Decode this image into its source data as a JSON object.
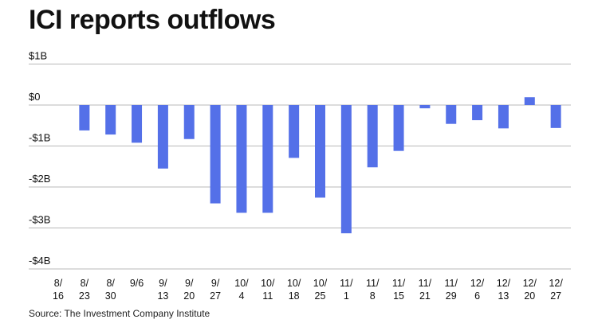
{
  "title": "ICI reports outflows",
  "source": "Source: The Investment Company Institute",
  "colors": {
    "bar": "#5470e8",
    "grid": "#b8b8b8",
    "text": "#111111"
  },
  "chart_data": {
    "type": "bar",
    "title": "ICI reports outflows",
    "ylabel": "",
    "xlabel": "",
    "ylim": [
      -4,
      1
    ],
    "grid": true,
    "y_ticks": [
      {
        "value": 1,
        "label": "$1B"
      },
      {
        "value": 0,
        "label": "$0"
      },
      {
        "value": -1,
        "label": "-$1B"
      },
      {
        "value": -2,
        "label": "-$2B"
      },
      {
        "value": -3,
        "label": "-$3B"
      },
      {
        "value": -4,
        "label": "-$4B"
      }
    ],
    "categories": [
      {
        "line1": "8/",
        "line2": "16",
        "value": 0
      },
      {
        "line1": "8/",
        "line2": "23",
        "value": -0.62
      },
      {
        "line1": "8/",
        "line2": "30",
        "value": -0.72
      },
      {
        "line1": "9/6",
        "line2": "",
        "value": -0.92
      },
      {
        "line1": "9/",
        "line2": "13",
        "value": -1.55
      },
      {
        "line1": "9/",
        "line2": "20",
        "value": -0.83
      },
      {
        "line1": "9/",
        "line2": "27",
        "value": -2.4
      },
      {
        "line1": "10/",
        "line2": "4",
        "value": -2.63
      },
      {
        "line1": "10/",
        "line2": "11",
        "value": -2.63
      },
      {
        "line1": "10/",
        "line2": "18",
        "value": -1.29
      },
      {
        "line1": "10/",
        "line2": "25",
        "value": -2.26
      },
      {
        "line1": "11/",
        "line2": "1",
        "value": -3.13
      },
      {
        "line1": "11/",
        "line2": "8",
        "value": -1.52
      },
      {
        "line1": "11/",
        "line2": "15",
        "value": -1.12
      },
      {
        "line1": "11/",
        "line2": "21",
        "value": -0.08
      },
      {
        "line1": "11/",
        "line2": "29",
        "value": -0.46
      },
      {
        "line1": "12/",
        "line2": "6",
        "value": -0.37
      },
      {
        "line1": "12/",
        "line2": "13",
        "value": -0.57
      },
      {
        "line1": "12/",
        "line2": "20",
        "value": 0.19
      },
      {
        "line1": "12/",
        "line2": "27",
        "value": -0.56
      }
    ]
  }
}
